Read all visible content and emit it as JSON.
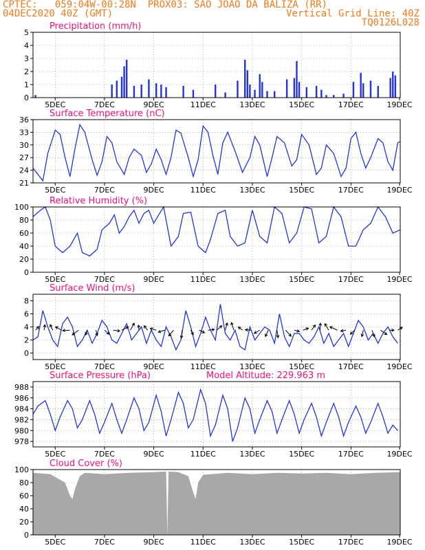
{
  "header": {
    "left_line1": "CPTEC:   059:04W-00:28N  PROX03: SAO JOAO DA BALIZA (RR)",
    "left_line2": "04DEC2020 40Z (GMT)",
    "right_line2": "Vertical Grid Line: 40Z",
    "right_line3": "TQ0126L028",
    "model_altitude": "Model Altitude: 229.963 m"
  },
  "x_axis": {
    "ticks": [
      "5DEC",
      "7DEC",
      "9DEC",
      "11DEC",
      "13DEC",
      "15DEC",
      "17DEC",
      "19DEC"
    ],
    "tick_days": [
      5,
      7,
      9,
      11,
      13,
      15,
      17,
      19
    ],
    "xlim": [
      4.1,
      19.0
    ]
  },
  "colors": {
    "line": "#2233dd",
    "title": "#ee1177",
    "gray": "#a8a8a8",
    "text": "#000000"
  },
  "chart_data": [
    {
      "type": "bar",
      "title": "Precipitation (mm/h)",
      "ylim": [
        0,
        5
      ],
      "yticks": [
        0,
        1,
        2,
        3,
        4,
        5
      ],
      "x": [
        4.2,
        7.3,
        7.5,
        7.7,
        7.8,
        7.9,
        8.2,
        8.5,
        8.8,
        9.1,
        9.3,
        9.5,
        10.2,
        10.6,
        11.5,
        11.9,
        12.4,
        12.7,
        12.8,
        12.9,
        13.1,
        13.3,
        13.4,
        13.6,
        13.9,
        14.4,
        14.7,
        14.8,
        14.9,
        15.2,
        15.6,
        15.8,
        16.0,
        16.3,
        16.7,
        17.1,
        17.4,
        17.5,
        17.8,
        18.1,
        18.6,
        18.7,
        18.8
      ],
      "values": [
        0.2,
        1.0,
        1.3,
        1.6,
        2.4,
        2.9,
        0.9,
        1.0,
        1.4,
        1.1,
        1.0,
        0.8,
        0.9,
        0.6,
        1.0,
        0.4,
        1.3,
        2.9,
        2.1,
        1.0,
        0.6,
        1.8,
        1.2,
        0.5,
        0.5,
        1.4,
        1.5,
        2.8,
        1.2,
        0.8,
        0.9,
        0.6,
        0.2,
        0.2,
        0.3,
        1.2,
        1.9,
        1.1,
        1.3,
        0.9,
        1.5,
        2.0,
        1.7
      ]
    },
    {
      "type": "line",
      "title": "Surface Temperature (nC)",
      "ylim": [
        21,
        36
      ],
      "yticks": [
        21,
        24,
        27,
        30,
        33,
        36
      ],
      "x": [
        4.1,
        4.3,
        4.5,
        4.7,
        5.0,
        5.2,
        5.4,
        5.6,
        5.8,
        6.0,
        6.2,
        6.5,
        6.7,
        6.9,
        7.1,
        7.3,
        7.5,
        7.8,
        8.0,
        8.2,
        8.5,
        8.7,
        8.9,
        9.1,
        9.3,
        9.5,
        9.7,
        9.9,
        10.1,
        10.4,
        10.6,
        10.8,
        11.0,
        11.2,
        11.4,
        11.6,
        11.8,
        12.0,
        12.3,
        12.6,
        12.9,
        13.1,
        13.3,
        13.6,
        13.8,
        14.0,
        14.3,
        14.6,
        14.8,
        15.0,
        15.3,
        15.6,
        15.8,
        16.0,
        16.3,
        16.6,
        16.8,
        17.0,
        17.2,
        17.4,
        17.6,
        17.8,
        18.1,
        18.3,
        18.5,
        18.7,
        18.9,
        19.0
      ],
      "values": [
        24.5,
        23,
        21.5,
        28,
        33.5,
        32.5,
        27,
        22.5,
        29,
        34.8,
        33,
        26.5,
        22.8,
        26,
        32,
        30.5,
        26,
        23,
        27,
        29,
        27.5,
        23.5,
        25.5,
        29,
        26.5,
        23,
        27,
        33.5,
        32.8,
        27,
        22.5,
        26.5,
        34.5,
        33,
        27.5,
        23,
        30.5,
        33,
        28.5,
        23.5,
        27,
        32,
        30,
        22.5,
        27,
        32,
        30.5,
        25,
        26.5,
        32.5,
        30,
        23,
        24.5,
        30,
        28,
        22.5,
        24.5,
        31.5,
        33,
        28,
        24.5,
        27,
        31.5,
        30.5,
        26,
        24,
        30.5,
        30.8
      ]
    },
    {
      "type": "line",
      "title": "Relative Humidity (%)",
      "ylim": [
        0,
        100
      ],
      "yticks": [
        0,
        20,
        40,
        60,
        80,
        100
      ],
      "x": [
        4.1,
        4.4,
        4.6,
        4.8,
        5.0,
        5.3,
        5.6,
        5.9,
        6.1,
        6.4,
        6.7,
        6.9,
        7.2,
        7.4,
        7.6,
        7.8,
        8.0,
        8.2,
        8.4,
        8.6,
        8.8,
        9.0,
        9.2,
        9.4,
        9.7,
        10.0,
        10.2,
        10.5,
        10.8,
        11.1,
        11.3,
        11.6,
        11.9,
        12.1,
        12.4,
        12.7,
        13.0,
        13.3,
        13.6,
        13.9,
        14.2,
        14.5,
        14.8,
        15.1,
        15.4,
        15.7,
        16.0,
        16.3,
        16.6,
        16.9,
        17.2,
        17.5,
        17.8,
        18.1,
        18.4,
        18.7,
        19.0
      ],
      "values": [
        85,
        95,
        100,
        80,
        40,
        30,
        40,
        60,
        30,
        25,
        35,
        65,
        75,
        88,
        60,
        70,
        85,
        95,
        75,
        90,
        95,
        75,
        88,
        100,
        40,
        55,
        90,
        92,
        40,
        30,
        50,
        90,
        95,
        55,
        40,
        45,
        95,
        55,
        45,
        100,
        90,
        45,
        60,
        100,
        97,
        45,
        55,
        100,
        85,
        40,
        40,
        65,
        75,
        100,
        85,
        60,
        65
      ]
    },
    {
      "type": "line",
      "title": "Surface Wind (m/s)",
      "ylim": [
        -1,
        9
      ],
      "yticks": [
        0,
        2,
        4,
        6,
        8
      ],
      "x": [
        4.1,
        4.3,
        4.5,
        4.7,
        4.9,
        5.1,
        5.3,
        5.5,
        5.7,
        5.9,
        6.1,
        6.3,
        6.5,
        6.7,
        6.9,
        7.1,
        7.3,
        7.5,
        7.7,
        7.9,
        8.1,
        8.3,
        8.5,
        8.7,
        8.9,
        9.1,
        9.3,
        9.5,
        9.7,
        9.9,
        10.1,
        10.3,
        10.5,
        10.7,
        10.9,
        11.1,
        11.3,
        11.5,
        11.7,
        11.9,
        12.1,
        12.3,
        12.5,
        12.7,
        12.9,
        13.1,
        13.3,
        13.5,
        13.7,
        13.9,
        14.1,
        14.3,
        14.5,
        14.7,
        14.9,
        15.1,
        15.3,
        15.5,
        15.7,
        15.9,
        16.1,
        16.3,
        16.5,
        16.7,
        16.9,
        17.1,
        17.3,
        17.5,
        17.7,
        17.9,
        18.1,
        18.3,
        18.5,
        18.7,
        18.9
      ],
      "values": [
        2,
        2.5,
        6.5,
        4,
        2,
        1,
        4.5,
        5.5,
        4,
        1,
        2,
        3.5,
        1.5,
        3,
        5,
        4,
        2,
        1.5,
        3,
        4.5,
        2,
        3,
        4,
        1.5,
        3.5,
        2,
        1,
        4,
        2.5,
        0.5,
        2,
        6.5,
        4,
        1,
        3,
        5.5,
        3.5,
        2,
        7.5,
        3,
        2,
        3.5,
        1,
        0.5,
        4,
        2,
        3,
        4,
        3.5,
        1.5,
        6,
        2.5,
        1,
        3,
        3,
        2,
        1.5,
        2.5,
        4,
        1.5,
        3,
        1,
        2,
        3,
        1,
        3,
        5,
        4,
        2,
        3,
        1.5,
        3,
        4,
        2.5,
        1.5
      ]
    },
    {
      "type": "line",
      "title": "Surface Pressure (hPa)",
      "ylim": [
        977,
        989
      ],
      "yticks": [
        978,
        980,
        982,
        984,
        986,
        988
      ],
      "x": [
        4.1,
        4.3,
        4.6,
        4.8,
        5.0,
        5.2,
        5.5,
        5.7,
        5.9,
        6.1,
        6.4,
        6.6,
        6.8,
        7.0,
        7.3,
        7.5,
        7.7,
        7.9,
        8.2,
        8.4,
        8.6,
        8.8,
        9.1,
        9.3,
        9.5,
        9.7,
        10.0,
        10.2,
        10.4,
        10.6,
        10.9,
        11.1,
        11.3,
        11.5,
        11.8,
        12.0,
        12.2,
        12.4,
        12.7,
        12.9,
        13.1,
        13.3,
        13.6,
        13.8,
        14.0,
        14.2,
        14.5,
        14.7,
        14.9,
        15.1,
        15.4,
        15.6,
        15.8,
        16.0,
        16.3,
        16.5,
        16.7,
        16.9,
        17.2,
        17.4,
        17.6,
        17.8,
        18.1,
        18.3,
        18.5,
        18.7,
        18.9
      ],
      "values": [
        983,
        984.5,
        985.5,
        983,
        980,
        982.5,
        985.5,
        984,
        980.5,
        982,
        985.5,
        983,
        979.5,
        981.5,
        985,
        982,
        979.5,
        982,
        986,
        984,
        980,
        981.5,
        986.5,
        983.5,
        979,
        982,
        987,
        985,
        980.5,
        982,
        987.5,
        985,
        979,
        981,
        986.5,
        984,
        978,
        980.5,
        986,
        984,
        979.5,
        982,
        985.5,
        983.5,
        979.5,
        982,
        985.5,
        983,
        979.5,
        982,
        985,
        982.5,
        979,
        981.5,
        985,
        982.5,
        979,
        981.5,
        984.5,
        982.5,
        979.5,
        981.5,
        985,
        982.5,
        979.5,
        981,
        980
      ]
    },
    {
      "type": "area",
      "title": "Cloud Cover (%)",
      "ylim": [
        0,
        100
      ],
      "yticks": [
        0,
        20,
        40,
        60,
        80,
        100
      ],
      "x": [
        4.1,
        4.8,
        5.4,
        5.6,
        5.7,
        5.8,
        5.9,
        6.0,
        6.2,
        7.0,
        8.0,
        9.0,
        9.5,
        9.55,
        9.6,
        10.0,
        10.4,
        10.6,
        10.7,
        10.8,
        11.0,
        12.0,
        13.0,
        14.0,
        15.0,
        16.0,
        17.0,
        18.0,
        19.0
      ],
      "values": [
        95,
        93,
        80,
        60,
        55,
        70,
        80,
        90,
        95,
        93,
        95,
        96,
        97,
        0,
        97,
        96,
        90,
        65,
        55,
        80,
        92,
        95,
        93,
        95,
        94,
        95,
        93,
        95,
        96
      ]
    }
  ]
}
